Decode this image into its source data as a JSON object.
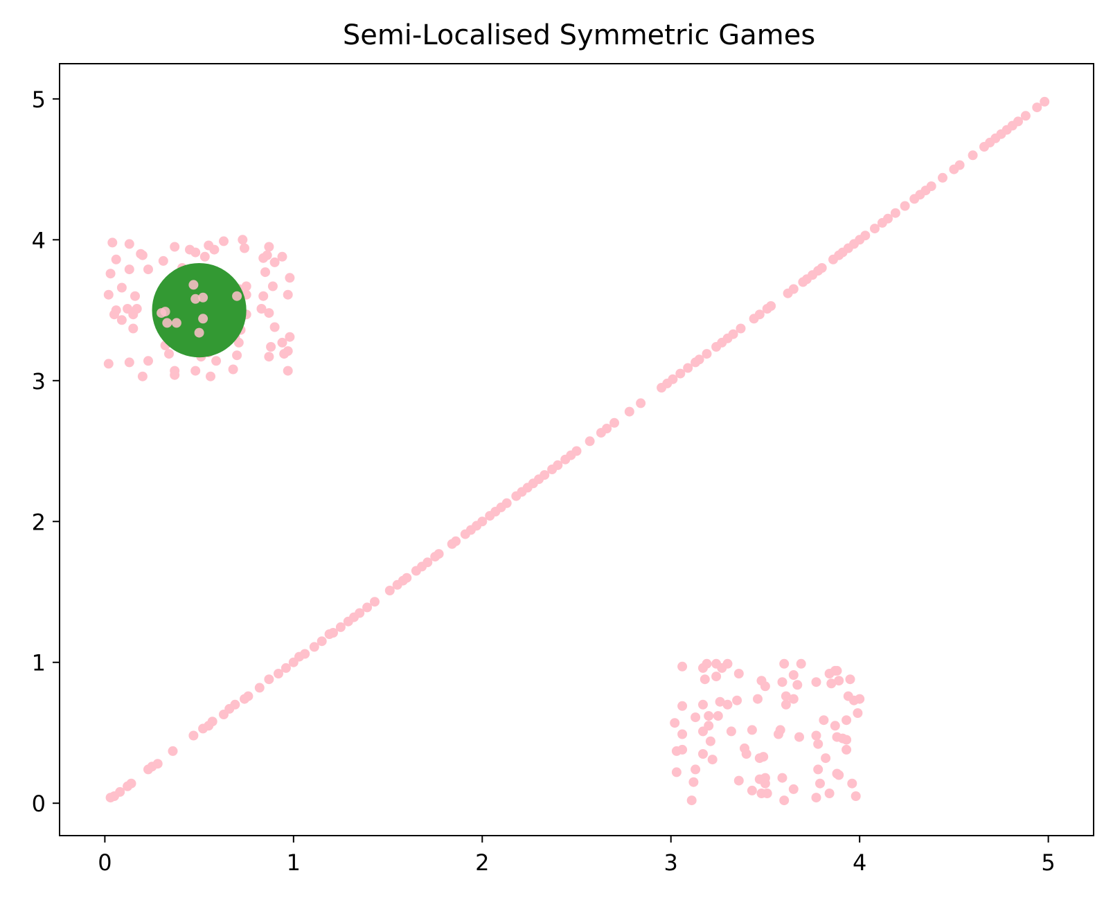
{
  "chart_data": {
    "type": "scatter",
    "title": "Semi-Localised Symmetric Games",
    "xlabel": "",
    "ylabel": "",
    "xlim": [
      -0.24,
      5.24
    ],
    "ylim": [
      -0.23,
      5.25
    ],
    "xticks": [
      0,
      1,
      2,
      3,
      4,
      5
    ],
    "yticks": [
      0,
      1,
      2,
      3,
      4,
      5
    ],
    "grid": false,
    "colors": {
      "pink": "#ffc0cb",
      "highlight": "#339933"
    },
    "highlight": {
      "x": 0.5,
      "y": 3.5,
      "radius": 0.25,
      "label": ""
    },
    "series": [
      {
        "color": "#ffc0cb",
        "points": [
          [
            0.03,
            0.04
          ],
          [
            0.05,
            0.05
          ],
          [
            0.08,
            0.08
          ],
          [
            0.12,
            0.12
          ],
          [
            0.14,
            0.14
          ],
          [
            0.23,
            0.24
          ],
          [
            0.25,
            0.26
          ],
          [
            0.28,
            0.28
          ],
          [
            0.36,
            0.37
          ],
          [
            0.47,
            0.48
          ],
          [
            0.52,
            0.53
          ],
          [
            0.55,
            0.55
          ],
          [
            0.57,
            0.58
          ],
          [
            0.63,
            0.63
          ],
          [
            0.66,
            0.67
          ],
          [
            0.69,
            0.7
          ],
          [
            0.74,
            0.74
          ],
          [
            0.76,
            0.76
          ],
          [
            0.82,
            0.82
          ],
          [
            0.87,
            0.88
          ],
          [
            0.92,
            0.92
          ],
          [
            0.96,
            0.96
          ],
          [
            1.0,
            1.0
          ],
          [
            1.03,
            1.04
          ],
          [
            1.06,
            1.06
          ],
          [
            1.11,
            1.11
          ],
          [
            1.15,
            1.15
          ],
          [
            1.19,
            1.2
          ],
          [
            1.21,
            1.21
          ],
          [
            1.25,
            1.25
          ],
          [
            1.29,
            1.29
          ],
          [
            1.32,
            1.32
          ],
          [
            1.35,
            1.35
          ],
          [
            1.39,
            1.39
          ],
          [
            1.43,
            1.43
          ],
          [
            1.51,
            1.51
          ],
          [
            1.55,
            1.55
          ],
          [
            1.58,
            1.58
          ],
          [
            1.6,
            1.6
          ],
          [
            1.65,
            1.65
          ],
          [
            1.68,
            1.68
          ],
          [
            1.71,
            1.71
          ],
          [
            1.75,
            1.75
          ],
          [
            1.77,
            1.77
          ],
          [
            1.84,
            1.84
          ],
          [
            1.86,
            1.86
          ],
          [
            1.91,
            1.91
          ],
          [
            1.94,
            1.94
          ],
          [
            1.97,
            1.97
          ],
          [
            2.0,
            2.0
          ],
          [
            2.04,
            2.04
          ],
          [
            2.07,
            2.07
          ],
          [
            2.1,
            2.1
          ],
          [
            2.13,
            2.13
          ],
          [
            2.18,
            2.18
          ],
          [
            2.21,
            2.21
          ],
          [
            2.24,
            2.24
          ],
          [
            2.27,
            2.27
          ],
          [
            2.3,
            2.3
          ],
          [
            2.33,
            2.33
          ],
          [
            2.37,
            2.37
          ],
          [
            2.4,
            2.4
          ],
          [
            2.44,
            2.44
          ],
          [
            2.47,
            2.47
          ],
          [
            2.5,
            2.5
          ],
          [
            2.57,
            2.57
          ],
          [
            2.63,
            2.63
          ],
          [
            2.66,
            2.66
          ],
          [
            2.7,
            2.7
          ],
          [
            2.78,
            2.78
          ],
          [
            2.84,
            2.84
          ],
          [
            2.95,
            2.95
          ],
          [
            2.98,
            2.98
          ],
          [
            3.01,
            3.01
          ],
          [
            3.05,
            3.05
          ],
          [
            3.09,
            3.09
          ],
          [
            3.13,
            3.13
          ],
          [
            3.15,
            3.15
          ],
          [
            3.19,
            3.19
          ],
          [
            3.24,
            3.24
          ],
          [
            3.27,
            3.27
          ],
          [
            3.3,
            3.3
          ],
          [
            3.33,
            3.33
          ],
          [
            3.37,
            3.37
          ],
          [
            3.44,
            3.44
          ],
          [
            3.47,
            3.47
          ],
          [
            3.51,
            3.51
          ],
          [
            3.53,
            3.53
          ],
          [
            3.62,
            3.62
          ],
          [
            3.65,
            3.65
          ],
          [
            3.7,
            3.7
          ],
          [
            3.72,
            3.72
          ],
          [
            3.75,
            3.75
          ],
          [
            3.78,
            3.78
          ],
          [
            3.8,
            3.8
          ],
          [
            3.86,
            3.86
          ],
          [
            3.89,
            3.89
          ],
          [
            3.91,
            3.91
          ],
          [
            3.94,
            3.94
          ],
          [
            3.97,
            3.97
          ],
          [
            4.0,
            4.0
          ],
          [
            4.03,
            4.03
          ],
          [
            4.08,
            4.08
          ],
          [
            4.12,
            4.12
          ],
          [
            4.15,
            4.15
          ],
          [
            4.19,
            4.19
          ],
          [
            4.24,
            4.24
          ],
          [
            4.29,
            4.29
          ],
          [
            4.32,
            4.32
          ],
          [
            4.35,
            4.35
          ],
          [
            4.38,
            4.38
          ],
          [
            4.44,
            4.44
          ],
          [
            4.5,
            4.5
          ],
          [
            4.53,
            4.53
          ],
          [
            4.6,
            4.6
          ],
          [
            4.66,
            4.66
          ],
          [
            4.69,
            4.69
          ],
          [
            4.72,
            4.72
          ],
          [
            4.75,
            4.75
          ],
          [
            4.78,
            4.78
          ],
          [
            4.81,
            4.81
          ],
          [
            4.84,
            4.84
          ],
          [
            4.88,
            4.88
          ],
          [
            4.94,
            4.94
          ],
          [
            4.98,
            4.98
          ],
          [
            0.04,
            3.98
          ],
          [
            0.13,
            3.97
          ],
          [
            0.02,
            3.61
          ],
          [
            0.03,
            3.76
          ],
          [
            0.06,
            3.86
          ],
          [
            0.09,
            3.66
          ],
          [
            0.05,
            3.47
          ],
          [
            0.06,
            3.5
          ],
          [
            0.09,
            3.43
          ],
          [
            0.13,
            3.79
          ],
          [
            0.16,
            3.6
          ],
          [
            0.12,
            3.51
          ],
          [
            0.15,
            3.47
          ],
          [
            0.15,
            3.37
          ],
          [
            0.17,
            3.51
          ],
          [
            0.02,
            3.12
          ],
          [
            0.13,
            3.13
          ],
          [
            0.2,
            3.03
          ],
          [
            0.23,
            3.14
          ],
          [
            0.2,
            3.89
          ],
          [
            0.23,
            3.79
          ],
          [
            0.19,
            3.9
          ],
          [
            0.31,
            3.85
          ],
          [
            0.37,
            3.95
          ],
          [
            0.41,
            3.8
          ],
          [
            0.45,
            3.93
          ],
          [
            0.48,
            3.91
          ],
          [
            0.47,
            3.78
          ],
          [
            0.53,
            3.88
          ],
          [
            0.55,
            3.96
          ],
          [
            0.58,
            3.93
          ],
          [
            0.63,
            3.99
          ],
          [
            0.73,
            4.0
          ],
          [
            0.74,
            3.94
          ],
          [
            0.84,
            3.87
          ],
          [
            0.87,
            3.95
          ],
          [
            0.86,
            3.89
          ],
          [
            0.9,
            3.84
          ],
          [
            0.94,
            3.88
          ],
          [
            0.85,
            3.77
          ],
          [
            0.98,
            3.73
          ],
          [
            0.75,
            3.67
          ],
          [
            0.71,
            3.65
          ],
          [
            0.7,
            3.6
          ],
          [
            0.75,
            3.61
          ],
          [
            0.84,
            3.6
          ],
          [
            0.89,
            3.67
          ],
          [
            0.97,
            3.61
          ],
          [
            0.83,
            3.51
          ],
          [
            0.75,
            3.47
          ],
          [
            0.87,
            3.48
          ],
          [
            0.72,
            3.36
          ],
          [
            0.69,
            3.31
          ],
          [
            0.71,
            3.27
          ],
          [
            0.9,
            3.38
          ],
          [
            0.98,
            3.31
          ],
          [
            0.94,
            3.27
          ],
          [
            0.88,
            3.24
          ],
          [
            0.97,
            3.21
          ],
          [
            0.95,
            3.19
          ],
          [
            0.87,
            3.17
          ],
          [
            0.97,
            3.07
          ],
          [
            0.7,
            3.18
          ],
          [
            0.68,
            3.08
          ],
          [
            0.6,
            3.26
          ],
          [
            0.59,
            3.14
          ],
          [
            0.55,
            3.2
          ],
          [
            0.51,
            3.17
          ],
          [
            0.56,
            3.03
          ],
          [
            0.48,
            3.07
          ],
          [
            0.44,
            3.22
          ],
          [
            0.34,
            3.19
          ],
          [
            0.32,
            3.25
          ],
          [
            0.37,
            3.07
          ],
          [
            0.37,
            3.04
          ],
          [
            0.3,
            3.48
          ],
          [
            0.32,
            3.49
          ],
          [
            0.33,
            3.41
          ],
          [
            0.38,
            3.41
          ],
          [
            0.47,
            3.68
          ],
          [
            0.48,
            3.58
          ],
          [
            0.52,
            3.59
          ],
          [
            0.52,
            3.44
          ],
          [
            0.5,
            3.34
          ],
          [
            3.19,
            0.99
          ],
          [
            3.24,
            0.99
          ],
          [
            3.3,
            0.99
          ],
          [
            3.6,
            0.99
          ],
          [
            3.69,
            0.99
          ],
          [
            3.06,
            0.97
          ],
          [
            3.17,
            0.96
          ],
          [
            3.27,
            0.96
          ],
          [
            3.36,
            0.92
          ],
          [
            3.65,
            0.91
          ],
          [
            3.84,
            0.92
          ],
          [
            3.88,
            0.94
          ],
          [
            3.87,
            0.94
          ],
          [
            3.95,
            0.88
          ],
          [
            3.18,
            0.88
          ],
          [
            3.24,
            0.9
          ],
          [
            3.48,
            0.87
          ],
          [
            3.59,
            0.86
          ],
          [
            3.67,
            0.84
          ],
          [
            3.77,
            0.86
          ],
          [
            3.89,
            0.87
          ],
          [
            3.85,
            0.85
          ],
          [
            3.61,
            0.76
          ],
          [
            3.65,
            0.74
          ],
          [
            3.94,
            0.76
          ],
          [
            3.97,
            0.73
          ],
          [
            4.0,
            0.74
          ],
          [
            3.26,
            0.72
          ],
          [
            3.3,
            0.7
          ],
          [
            3.35,
            0.73
          ],
          [
            3.46,
            0.74
          ],
          [
            3.5,
            0.83
          ],
          [
            3.61,
            0.7
          ],
          [
            3.17,
            0.7
          ],
          [
            3.06,
            0.69
          ],
          [
            3.02,
            0.57
          ],
          [
            3.06,
            0.49
          ],
          [
            3.13,
            0.61
          ],
          [
            3.2,
            0.62
          ],
          [
            3.25,
            0.62
          ],
          [
            3.17,
            0.51
          ],
          [
            3.2,
            0.55
          ],
          [
            3.32,
            0.51
          ],
          [
            3.43,
            0.52
          ],
          [
            3.58,
            0.52
          ],
          [
            3.57,
            0.49
          ],
          [
            3.68,
            0.47
          ],
          [
            3.77,
            0.48
          ],
          [
            3.81,
            0.59
          ],
          [
            3.87,
            0.55
          ],
          [
            3.88,
            0.47
          ],
          [
            3.93,
            0.59
          ],
          [
            3.99,
            0.64
          ],
          [
            3.91,
            0.46
          ],
          [
            3.93,
            0.45
          ],
          [
            3.78,
            0.42
          ],
          [
            3.93,
            0.38
          ],
          [
            3.03,
            0.37
          ],
          [
            3.06,
            0.38
          ],
          [
            3.17,
            0.35
          ],
          [
            3.21,
            0.44
          ],
          [
            3.22,
            0.31
          ],
          [
            3.39,
            0.39
          ],
          [
            3.4,
            0.35
          ],
          [
            3.47,
            0.32
          ],
          [
            3.49,
            0.33
          ],
          [
            3.82,
            0.32
          ],
          [
            3.03,
            0.22
          ],
          [
            3.13,
            0.24
          ],
          [
            3.12,
            0.15
          ],
          [
            3.11,
            0.02
          ],
          [
            3.36,
            0.16
          ],
          [
            3.43,
            0.09
          ],
          [
            3.47,
            0.17
          ],
          [
            3.48,
            0.07
          ],
          [
            3.5,
            0.18
          ],
          [
            3.5,
            0.14
          ],
          [
            3.51,
            0.07
          ],
          [
            3.59,
            0.18
          ],
          [
            3.6,
            0.02
          ],
          [
            3.65,
            0.1
          ],
          [
            3.77,
            0.04
          ],
          [
            3.78,
            0.24
          ],
          [
            3.79,
            0.14
          ],
          [
            3.84,
            0.07
          ],
          [
            3.88,
            0.21
          ],
          [
            3.89,
            0.2
          ],
          [
            3.96,
            0.14
          ],
          [
            3.98,
            0.05
          ]
        ]
      }
    ]
  }
}
